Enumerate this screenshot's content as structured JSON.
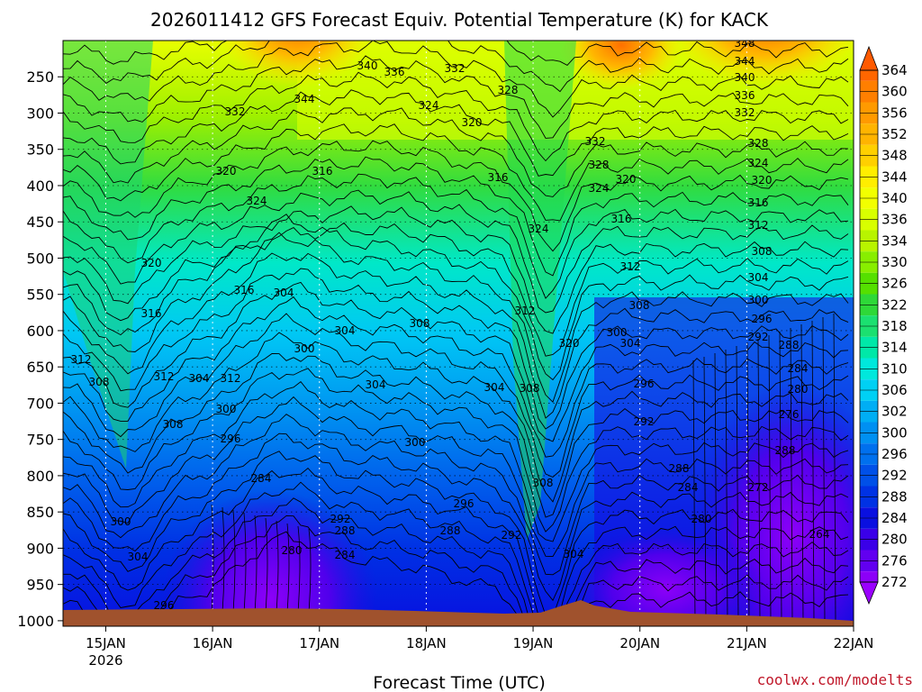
{
  "chart_data": {
    "type": "heatmap",
    "title": "2026011412 GFS Forecast Equiv. Potential Temperature (K) for KACK",
    "xlabel": "Forecast Time (UTC)",
    "ylabel": "",
    "credit": "coolwx.com/modelts",
    "x_ticks": [
      {
        "label": "15JAN",
        "sub": "2026"
      },
      {
        "label": "16JAN",
        "sub": ""
      },
      {
        "label": "17JAN",
        "sub": ""
      },
      {
        "label": "18JAN",
        "sub": ""
      },
      {
        "label": "19JAN",
        "sub": ""
      },
      {
        "label": "20JAN",
        "sub": ""
      },
      {
        "label": "21JAN",
        "sub": ""
      },
      {
        "label": "22JAN",
        "sub": ""
      }
    ],
    "x_range_days": [
      14.6,
      22.0
    ],
    "y_ticks": [
      250,
      300,
      350,
      400,
      450,
      500,
      550,
      600,
      650,
      700,
      750,
      800,
      850,
      900,
      950,
      1000
    ],
    "y_range_hpa": [
      200,
      1020
    ],
    "colorbar": {
      "labels": [
        364,
        360,
        356,
        352,
        348,
        344,
        340,
        336,
        334,
        330,
        326,
        322,
        318,
        314,
        310,
        306,
        302,
        300,
        296,
        292,
        288,
        284,
        280,
        276,
        272
      ],
      "colors": [
        "#ff6600",
        "#ff7f00",
        "#ff9a00",
        "#ffb400",
        "#ffd000",
        "#ffee00",
        "#f2ff00",
        "#d8ff00",
        "#b8f400",
        "#88ee00",
        "#55e000",
        "#2ed838",
        "#1be070",
        "#00e8a8",
        "#00e8dc",
        "#00d0f4",
        "#00aef4",
        "#0090f2",
        "#0070ee",
        "#0050e8",
        "#0032e4",
        "#0a10e0",
        "#3a00e8",
        "#6200f0",
        "#8c00f8"
      ]
    },
    "contour_labels": [
      {
        "t": "348",
        "x": 827,
        "y": 52
      },
      {
        "t": "344",
        "x": 827,
        "y": 72
      },
      {
        "t": "340",
        "x": 827,
        "y": 90
      },
      {
        "t": "336",
        "x": 827,
        "y": 110
      },
      {
        "t": "332",
        "x": 827,
        "y": 129
      },
      {
        "t": "328",
        "x": 842,
        "y": 163
      },
      {
        "t": "324",
        "x": 842,
        "y": 185
      },
      {
        "t": "320",
        "x": 846,
        "y": 204
      },
      {
        "t": "316",
        "x": 842,
        "y": 229
      },
      {
        "t": "312",
        "x": 842,
        "y": 254
      },
      {
        "t": "308",
        "x": 846,
        "y": 283
      },
      {
        "t": "304",
        "x": 842,
        "y": 312
      },
      {
        "t": "300",
        "x": 842,
        "y": 337
      },
      {
        "t": "296",
        "x": 846,
        "y": 358
      },
      {
        "t": "292",
        "x": 842,
        "y": 378
      },
      {
        "t": "288",
        "x": 876,
        "y": 387
      },
      {
        "t": "284",
        "x": 886,
        "y": 413
      },
      {
        "t": "280",
        "x": 886,
        "y": 436
      },
      {
        "t": "276",
        "x": 876,
        "y": 464
      },
      {
        "t": "288",
        "x": 872,
        "y": 504
      },
      {
        "t": "272",
        "x": 842,
        "y": 545
      },
      {
        "t": "264",
        "x": 910,
        "y": 597
      },
      {
        "t": "340",
        "x": 408,
        "y": 77
      },
      {
        "t": "336",
        "x": 438,
        "y": 84
      },
      {
        "t": "332",
        "x": 505,
        "y": 80
      },
      {
        "t": "328",
        "x": 564,
        "y": 104
      },
      {
        "t": "324",
        "x": 476,
        "y": 121
      },
      {
        "t": "320",
        "x": 524,
        "y": 140
      },
      {
        "t": "316",
        "x": 553,
        "y": 201
      },
      {
        "t": "316",
        "x": 358,
        "y": 194
      },
      {
        "t": "344",
        "x": 338,
        "y": 114
      },
      {
        "t": "332",
        "x": 261,
        "y": 128
      },
      {
        "t": "320",
        "x": 251,
        "y": 194
      },
      {
        "t": "324",
        "x": 285,
        "y": 227
      },
      {
        "t": "320",
        "x": 168,
        "y": 296
      },
      {
        "t": "316",
        "x": 271,
        "y": 326
      },
      {
        "t": "304",
        "x": 315,
        "y": 329
      },
      {
        "t": "316",
        "x": 168,
        "y": 352
      },
      {
        "t": "312",
        "x": 90,
        "y": 403
      },
      {
        "t": "308",
        "x": 110,
        "y": 428
      },
      {
        "t": "312",
        "x": 182,
        "y": 422
      },
      {
        "t": "304",
        "x": 221,
        "y": 424
      },
      {
        "t": "312",
        "x": 256,
        "y": 424
      },
      {
        "t": "300",
        "x": 251,
        "y": 458
      },
      {
        "t": "308",
        "x": 192,
        "y": 475
      },
      {
        "t": "296",
        "x": 256,
        "y": 491
      },
      {
        "t": "300",
        "x": 338,
        "y": 391
      },
      {
        "t": "304",
        "x": 383,
        "y": 371
      },
      {
        "t": "308",
        "x": 466,
        "y": 363
      },
      {
        "t": "304",
        "x": 417,
        "y": 431
      },
      {
        "t": "304",
        "x": 549,
        "y": 434
      },
      {
        "t": "308",
        "x": 588,
        "y": 435
      },
      {
        "t": "312",
        "x": 583,
        "y": 349
      },
      {
        "t": "324",
        "x": 598,
        "y": 258
      },
      {
        "t": "320",
        "x": 632,
        "y": 385
      },
      {
        "t": "332",
        "x": 661,
        "y": 161
      },
      {
        "t": "328",
        "x": 665,
        "y": 187
      },
      {
        "t": "324",
        "x": 665,
        "y": 213
      },
      {
        "t": "320",
        "x": 695,
        "y": 203
      },
      {
        "t": "316",
        "x": 690,
        "y": 247
      },
      {
        "t": "312",
        "x": 700,
        "y": 300
      },
      {
        "t": "308",
        "x": 710,
        "y": 343
      },
      {
        "t": "300",
        "x": 685,
        "y": 373
      },
      {
        "t": "304",
        "x": 700,
        "y": 385
      },
      {
        "t": "296",
        "x": 715,
        "y": 430
      },
      {
        "t": "292",
        "x": 715,
        "y": 472
      },
      {
        "t": "288",
        "x": 754,
        "y": 524
      },
      {
        "t": "284",
        "x": 764,
        "y": 545
      },
      {
        "t": "280",
        "x": 779,
        "y": 580
      },
      {
        "t": "300",
        "x": 461,
        "y": 495
      },
      {
        "t": "296",
        "x": 515,
        "y": 563
      },
      {
        "t": "288",
        "x": 500,
        "y": 593
      },
      {
        "t": "292",
        "x": 568,
        "y": 598
      },
      {
        "t": "308",
        "x": 603,
        "y": 540
      },
      {
        "t": "304",
        "x": 637,
        "y": 619
      },
      {
        "t": "284",
        "x": 290,
        "y": 535
      },
      {
        "t": "292",
        "x": 378,
        "y": 580
      },
      {
        "t": "288",
        "x": 383,
        "y": 593
      },
      {
        "t": "280",
        "x": 324,
        "y": 615
      },
      {
        "t": "284",
        "x": 383,
        "y": 620
      },
      {
        "t": "300",
        "x": 134,
        "y": 583
      },
      {
        "t": "304",
        "x": 153,
        "y": 622
      },
      {
        "t": "296",
        "x": 182,
        "y": 676
      }
    ]
  }
}
